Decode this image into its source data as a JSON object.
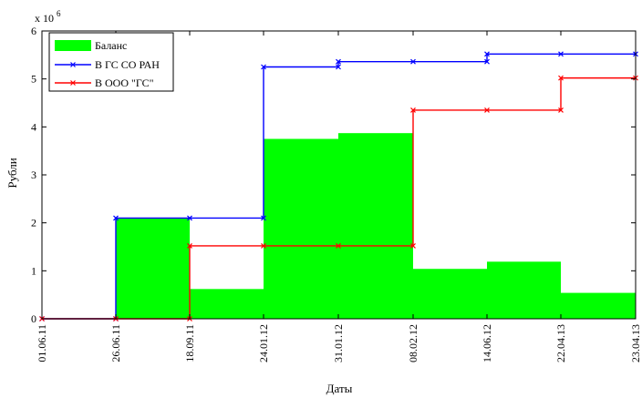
{
  "chart_data": {
    "type": "area",
    "xlabel": "Даты",
    "ylabel": "Рубли",
    "y_multiplier": "x 10",
    "y_multiplier_exp": "6",
    "ylim": [
      0,
      6
    ],
    "yticks": [
      "0",
      "1",
      "2",
      "3",
      "4",
      "5",
      "6"
    ],
    "xticks": [
      "01.06.11",
      "26.06.11",
      "18.09.11",
      "24.01.12",
      "31.01.12",
      "08.02.12",
      "14.06.12",
      "22.04.13",
      "23.04.13"
    ],
    "grid": false,
    "legend_position": "top-left",
    "series": [
      {
        "name": "Баланс",
        "kind": "filled-steps",
        "color": "#00ff00",
        "values": [
          0,
          2.1,
          0.62,
          3.75,
          3.87,
          1.04,
          1.19,
          0.54
        ]
      },
      {
        "name": "В ГС СО РАН",
        "kind": "step-line",
        "color": "#0000ff",
        "values": [
          0,
          2.1,
          2.1,
          5.25,
          5.36,
          5.36,
          5.52,
          5.52,
          5.52
        ]
      },
      {
        "name": "В ООО \"ГС\"",
        "kind": "step-line",
        "color": "#ff0000",
        "values": [
          0,
          0,
          1.52,
          1.52,
          1.52,
          4.35,
          4.35,
          5.02,
          5.02
        ]
      }
    ]
  }
}
